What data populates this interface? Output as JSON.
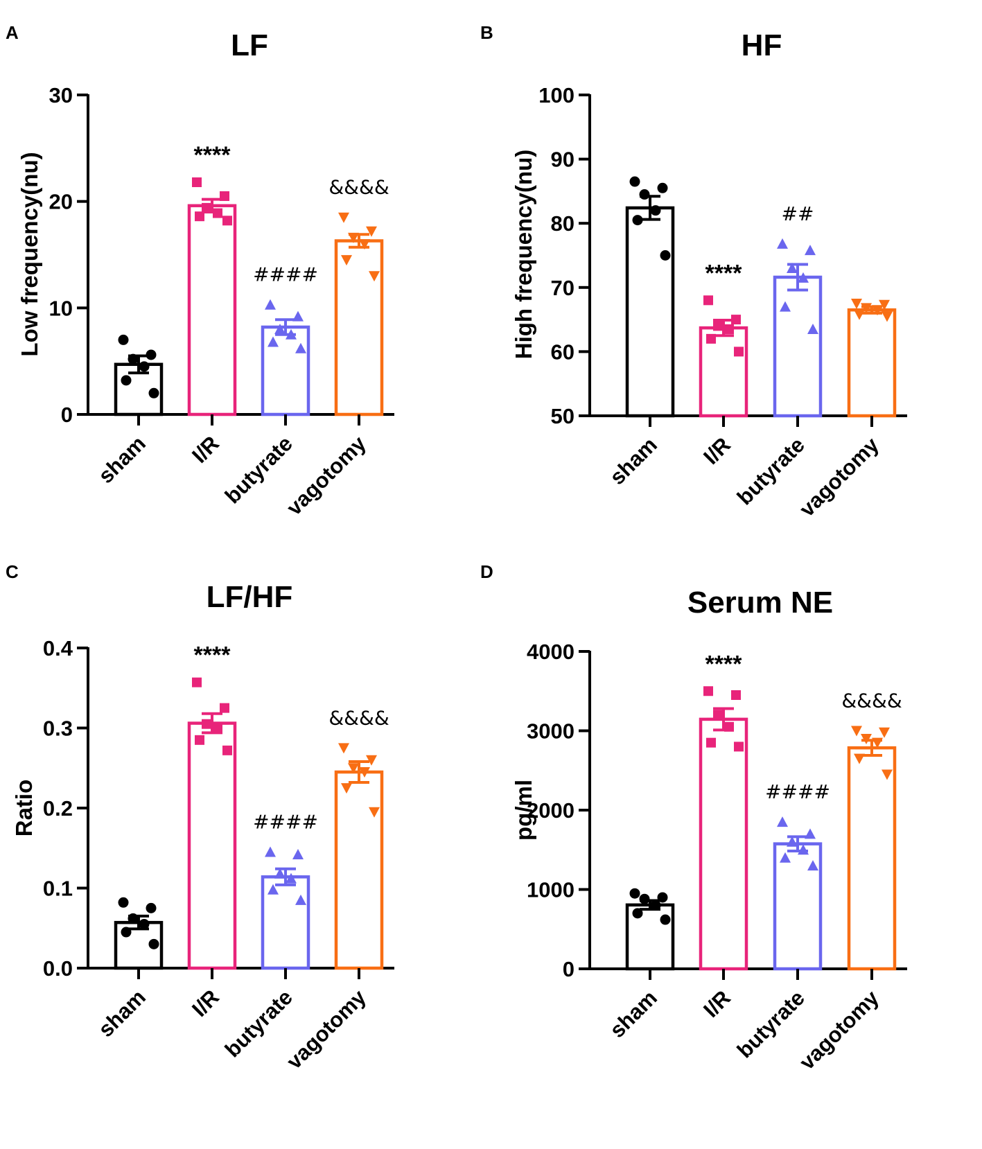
{
  "figure": {
    "colors": {
      "sham": "#000000",
      "ir": "#e8247a",
      "butyrate": "#6a66ee",
      "vagotomy": "#f86e14"
    }
  },
  "chart_data": [
    {
      "panel": "A",
      "type": "bar",
      "title": "LF",
      "ylabel": "Low frequency(nu)",
      "xlabel": "",
      "ylim": [
        0,
        30
      ],
      "yticks": [
        0,
        10,
        20,
        30
      ],
      "ytick_labels": [
        "0",
        "10",
        "20",
        "30"
      ],
      "categories": [
        "sham",
        "I/R",
        "butyrate",
        "vagotomy"
      ],
      "values": [
        4.7,
        19.6,
        8.2,
        16.3
      ],
      "sem": [
        0.8,
        0.6,
        0.7,
        0.6
      ],
      "markers": [
        "circle",
        "square",
        "triangle-up",
        "triangle-down"
      ],
      "points": [
        [
          7.0,
          5.6,
          5.2,
          4.5,
          3.2,
          2.0
        ],
        [
          21.8,
          20.5,
          19.4,
          18.9,
          18.6,
          18.2
        ],
        [
          10.3,
          9.2,
          8.0,
          7.5,
          6.8,
          6.2
        ],
        [
          18.5,
          17.2,
          16.6,
          16.0,
          14.5,
          13.0
        ]
      ],
      "significance": [
        "",
        "****",
        "####",
        "&&&&"
      ]
    },
    {
      "panel": "B",
      "type": "bar",
      "title": "HF",
      "ylabel": "High frequency(nu)",
      "xlabel": "",
      "ylim": [
        50,
        100
      ],
      "yticks": [
        50,
        60,
        70,
        80,
        90,
        100
      ],
      "ytick_labels": [
        "50",
        "60",
        "70",
        "80",
        "90",
        "100"
      ],
      "categories": [
        "sham",
        "I/R",
        "butyrate",
        "vagotomy"
      ],
      "values": [
        82.4,
        63.7,
        71.6,
        66.5
      ],
      "sem": [
        1.8,
        1.2,
        2.0,
        0.5
      ],
      "markers": [
        "circle",
        "square",
        "triangle-up",
        "triangle-down"
      ],
      "points": [
        [
          86.5,
          85.5,
          84.5,
          82.0,
          80.5,
          75.0
        ],
        [
          68.0,
          65.0,
          64.0,
          63.5,
          62.0,
          60.0
        ],
        [
          76.8,
          75.8,
          73.0,
          71.5,
          67.0,
          63.5
        ],
        [
          67.5,
          67.3,
          66.8,
          66.5,
          65.8,
          65.5
        ]
      ],
      "significance": [
        "",
        "****",
        "##",
        ""
      ]
    },
    {
      "panel": "C",
      "type": "bar",
      "title": "LF/HF",
      "ylabel": "Ratio",
      "xlabel": "",
      "ylim": [
        0.0,
        0.4
      ],
      "yticks": [
        0.0,
        0.1,
        0.2,
        0.3,
        0.4
      ],
      "ytick_labels": [
        "0.0",
        "0.1",
        "0.2",
        "0.3",
        "0.4"
      ],
      "categories": [
        "sham",
        "I/R",
        "butyrate",
        "vagotomy"
      ],
      "values": [
        0.057,
        0.306,
        0.114,
        0.245
      ],
      "sem": [
        0.008,
        0.012,
        0.01,
        0.013
      ],
      "markers": [
        "circle",
        "square",
        "triangle-up",
        "triangle-down"
      ],
      "points": [
        [
          0.082,
          0.075,
          0.062,
          0.055,
          0.045,
          0.03
        ],
        [
          0.357,
          0.325,
          0.305,
          0.3,
          0.285,
          0.272
        ],
        [
          0.145,
          0.142,
          0.118,
          0.112,
          0.098,
          0.085
        ],
        [
          0.275,
          0.26,
          0.25,
          0.245,
          0.225,
          0.195
        ]
      ],
      "significance": [
        "",
        "****",
        "####",
        "&&&&"
      ]
    },
    {
      "panel": "D",
      "type": "bar",
      "title": "Serum NE",
      "ylabel": "pg/ml",
      "xlabel": "",
      "ylim": [
        0,
        4000
      ],
      "yticks": [
        0,
        1000,
        2000,
        3000,
        4000
      ],
      "ytick_labels": [
        "0",
        "1000",
        "2000",
        "3000",
        "4000"
      ],
      "categories": [
        "sham",
        "I/R",
        "butyrate",
        "vagotomy"
      ],
      "values": [
        805,
        3145,
        1575,
        2785
      ],
      "sem": [
        55,
        135,
        90,
        95
      ],
      "markers": [
        "circle",
        "square",
        "triangle-up",
        "triangle-down"
      ],
      "points": [
        [
          950,
          900,
          880,
          800,
          700,
          620
        ],
        [
          3500,
          3450,
          3200,
          3050,
          2850,
          2800
        ],
        [
          1850,
          1700,
          1600,
          1500,
          1400,
          1300
        ],
        [
          3000,
          2980,
          2900,
          2850,
          2650,
          2450
        ]
      ],
      "significance": [
        "",
        "****",
        "####",
        "&&&&"
      ]
    }
  ]
}
